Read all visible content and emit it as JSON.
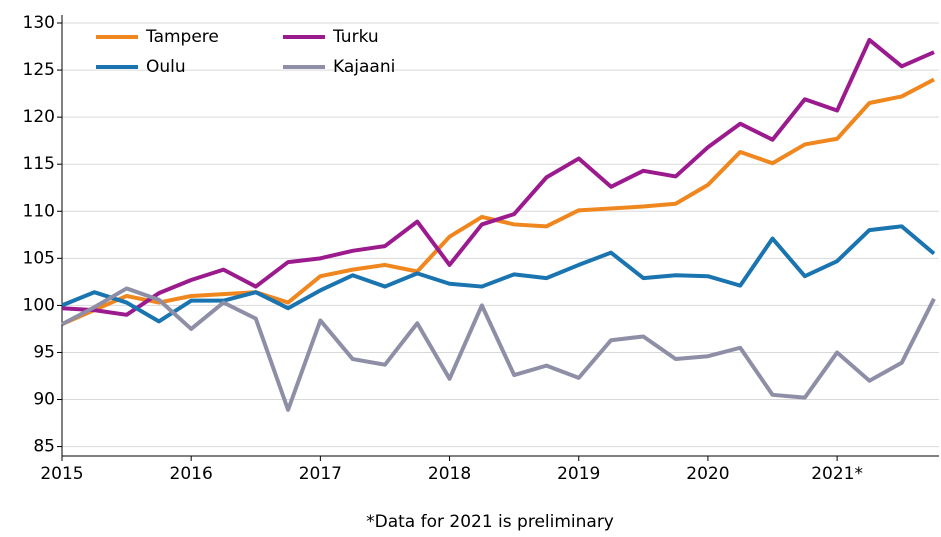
{
  "chart_data": {
    "type": "line",
    "subtitle": "*Data for 2021 is preliminary",
    "categories": [
      "2015",
      null,
      null,
      null,
      "2016",
      null,
      null,
      null,
      "2017",
      null,
      null,
      null,
      "2018",
      null,
      null,
      null,
      "2019",
      null,
      null,
      null,
      "2020",
      null,
      null,
      null,
      "2021*",
      null,
      null,
      null
    ],
    "series": [
      {
        "name": "Tampere",
        "color": "#f0861e",
        "values": [
          98,
          99.5,
          101,
          100.3,
          101,
          101.2,
          101.4,
          100.3,
          103.1,
          103.8,
          104.3,
          103.6,
          107.3,
          109.4,
          108.6,
          108.4,
          110.1,
          110.3,
          110.5,
          110.8,
          112.8,
          116.3,
          115.1,
          117.1,
          117.7,
          121.5,
          122.2,
          124
        ]
      },
      {
        "name": "Turku",
        "color": "#9b1a8e",
        "values": [
          99.7,
          99.5,
          99,
          101.3,
          102.7,
          103.8,
          102,
          104.6,
          105,
          105.8,
          106.3,
          108.9,
          104.3,
          108.6,
          109.7,
          113.6,
          115.6,
          112.6,
          114.3,
          113.7,
          116.8,
          119.3,
          117.6,
          121.9,
          120.7,
          128.2,
          125.4,
          126.9
        ]
      },
      {
        "name": "Oulu",
        "color": "#1a74b0",
        "values": [
          100,
          101.4,
          100.3,
          98.3,
          100.5,
          100.5,
          101.4,
          99.7,
          101.6,
          103.2,
          102,
          103.4,
          102.3,
          102,
          103.3,
          102.9,
          104.3,
          105.6,
          102.9,
          103.2,
          103.1,
          102.1,
          107.1,
          103.1,
          104.7,
          108,
          108.4,
          105.5
        ]
      },
      {
        "name": "Kajaani",
        "color": "#8e8fa6",
        "values": [
          98,
          99.8,
          101.8,
          100.6,
          97.5,
          100.3,
          98.6,
          88.9,
          98.4,
          94.3,
          93.7,
          98.1,
          92.2,
          100,
          92.6,
          93.6,
          92.3,
          96.3,
          96.7,
          94.3,
          94.6,
          95.5,
          90.5,
          90.2,
          95,
          92,
          93.9,
          100.7
        ]
      }
    ],
    "ylim": [
      84,
      130
    ],
    "yticks": [
      85,
      90,
      95,
      100,
      105,
      110,
      115,
      120,
      125,
      130
    ],
    "grid": true,
    "legend": "top-left"
  }
}
